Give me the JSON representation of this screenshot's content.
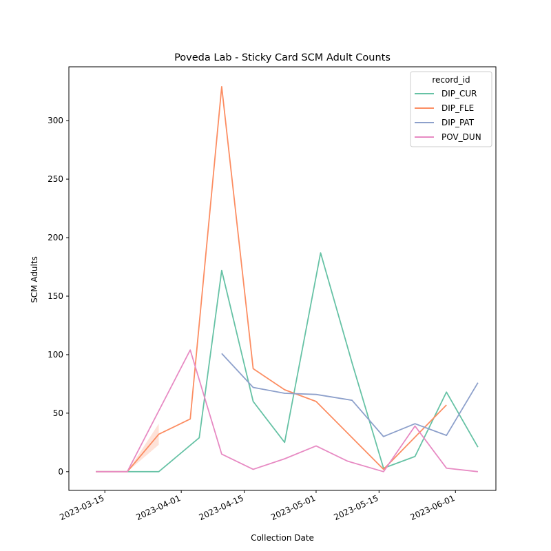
{
  "chart_data": {
    "type": "line",
    "title": "Poveda Lab - Sticky Card SCM Adult Counts",
    "xlabel": "Collection Date",
    "ylabel": "SCM Adults",
    "xlim": [
      "2023-03-07",
      "2023-06-10"
    ],
    "ylim": [
      -16,
      346
    ],
    "x_ticks": [
      "2023-03-15",
      "2023-04-01",
      "2023-04-15",
      "2023-05-01",
      "2023-05-15",
      "2023-06-01"
    ],
    "y_ticks": [
      0,
      50,
      100,
      150,
      200,
      250,
      300
    ],
    "legend": {
      "title": "record_id",
      "placement": "top-right"
    },
    "grid": false,
    "series": [
      {
        "name": "DIP_CUR",
        "color": "#66c2a5",
        "points": [
          [
            "2023-03-13",
            0
          ],
          [
            "2023-03-20",
            0
          ],
          [
            "2023-03-27",
            0
          ],
          [
            "2023-04-05",
            29
          ],
          [
            "2023-04-10",
            172
          ],
          [
            "2023-04-17",
            60
          ],
          [
            "2023-04-24",
            25
          ],
          [
            "2023-05-02",
            187
          ],
          [
            "2023-05-09",
            93
          ],
          [
            "2023-05-16",
            3
          ],
          [
            "2023-05-23",
            13
          ],
          [
            "2023-05-30",
            68
          ],
          [
            "2023-06-06",
            21
          ]
        ]
      },
      {
        "name": "DIP_FLE",
        "color": "#fc8d62",
        "points": [
          [
            "2023-03-13",
            0
          ],
          [
            "2023-03-20",
            0
          ],
          [
            "2023-03-27",
            32
          ],
          [
            "2023-04-03",
            45
          ],
          [
            "2023-04-10",
            329
          ],
          [
            "2023-04-17",
            88
          ],
          [
            "2023-04-24",
            70
          ],
          [
            "2023-05-01",
            60
          ],
          [
            "2023-05-16",
            2
          ],
          [
            "2023-05-30",
            57
          ]
        ],
        "band": [
          [
            "2023-03-20",
            0,
            0
          ],
          [
            "2023-03-27",
            23,
            41
          ]
        ]
      },
      {
        "name": "DIP_PAT",
        "color": "#8da0cb",
        "points": [
          [
            "2023-04-10",
            101
          ],
          [
            "2023-04-17",
            72
          ],
          [
            "2023-04-24",
            67
          ],
          [
            "2023-05-01",
            66
          ],
          [
            "2023-05-09",
            61
          ],
          [
            "2023-05-16",
            30
          ],
          [
            "2023-05-23",
            41
          ],
          [
            "2023-05-30",
            31
          ],
          [
            "2023-06-06",
            76
          ]
        ]
      },
      {
        "name": "POV_DUN",
        "color": "#e78ac3",
        "points": [
          [
            "2023-03-13",
            0
          ],
          [
            "2023-03-20",
            0
          ],
          [
            "2023-03-27",
            52
          ],
          [
            "2023-04-03",
            104
          ],
          [
            "2023-04-10",
            15
          ],
          [
            "2023-04-17",
            2
          ],
          [
            "2023-04-24",
            11
          ],
          [
            "2023-05-01",
            22
          ],
          [
            "2023-05-08",
            9
          ],
          [
            "2023-05-16",
            0
          ],
          [
            "2023-05-23",
            39
          ],
          [
            "2023-05-30",
            3
          ],
          [
            "2023-06-06",
            0
          ]
        ]
      }
    ]
  }
}
